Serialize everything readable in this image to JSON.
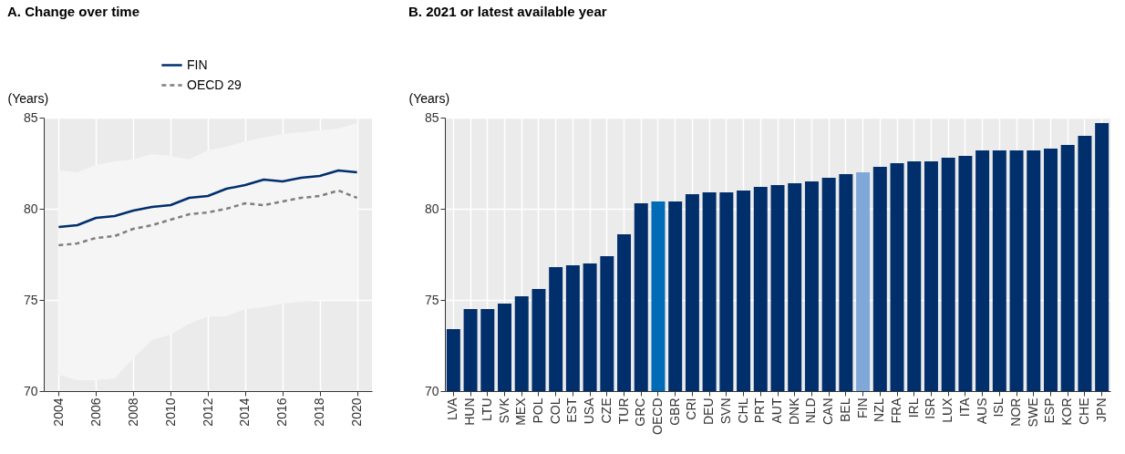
{
  "chart_data": [
    {
      "type": "line",
      "title": "A. Change over time",
      "ylabel": "(Years)",
      "x": [
        2004,
        2005,
        2006,
        2007,
        2008,
        2009,
        2010,
        2011,
        2012,
        2013,
        2014,
        2015,
        2016,
        2017,
        2018,
        2019,
        2020
      ],
      "series": [
        {
          "name": "FIN",
          "color": "#002f6c",
          "line_style": "solid",
          "values": [
            79.0,
            79.1,
            79.5,
            79.6,
            79.9,
            80.1,
            80.2,
            80.6,
            80.7,
            81.1,
            81.3,
            81.6,
            81.5,
            81.7,
            81.8,
            82.1,
            82.0
          ]
        },
        {
          "name": "OECD 29",
          "color": "#7f7f7f",
          "line_style": "dashed",
          "values": [
            78.0,
            78.1,
            78.4,
            78.5,
            78.9,
            79.1,
            79.4,
            79.7,
            79.8,
            80.0,
            80.3,
            80.2,
            80.4,
            80.6,
            80.7,
            81.0,
            80.6
          ],
          "lower": [
            70.9,
            70.6,
            70.6,
            70.7,
            71.8,
            72.8,
            73.1,
            73.7,
            74.1,
            74.1,
            74.5,
            74.6,
            74.8,
            74.9,
            75.0,
            75.0,
            75.0
          ],
          "upper": [
            82.1,
            82.0,
            82.4,
            82.6,
            82.7,
            83.0,
            82.9,
            82.7,
            83.2,
            83.4,
            83.7,
            83.9,
            84.1,
            84.2,
            84.3,
            84.4,
            84.7
          ]
        }
      ],
      "xlim": [
        2003.2,
        2020.8
      ],
      "xticks": [
        2004,
        2006,
        2008,
        2010,
        2012,
        2014,
        2016,
        2018,
        2020
      ],
      "ylim": [
        70,
        85
      ],
      "yticks": [
        70,
        75,
        80,
        85
      ],
      "grid": true,
      "legend": "top"
    },
    {
      "type": "bar",
      "title": "B. 2021 or latest available year",
      "ylabel": "(Years)",
      "categories": [
        "LVA",
        "HUN",
        "LTU",
        "SVK",
        "MEX",
        "POL",
        "COL",
        "EST",
        "USA",
        "CZE",
        "TUR",
        "GRC",
        "OECD",
        "GBR",
        "CRI",
        "DEU",
        "SVN",
        "CHL",
        "PRT",
        "AUT",
        "DNK",
        "NLD",
        "CAN",
        "BEL",
        "FIN",
        "NZL",
        "FRA",
        "IRL",
        "ISR",
        "LUX",
        "ITA",
        "AUS",
        "ISL",
        "NOR",
        "SWE",
        "ESP",
        "KOR",
        "CHE",
        "JPN"
      ],
      "values": [
        73.4,
        74.5,
        74.5,
        74.8,
        75.2,
        75.6,
        76.8,
        76.9,
        77.0,
        77.4,
        78.6,
        80.3,
        80.4,
        80.4,
        80.8,
        80.9,
        80.9,
        81.0,
        81.2,
        81.3,
        81.4,
        81.5,
        81.7,
        81.9,
        82.0,
        82.3,
        82.5,
        82.6,
        82.6,
        82.8,
        82.9,
        83.2,
        83.2,
        83.2,
        83.2,
        83.3,
        83.5,
        84.0,
        84.7
      ],
      "colors": [
        "#002f6c",
        "#002f6c",
        "#002f6c",
        "#002f6c",
        "#002f6c",
        "#002f6c",
        "#002f6c",
        "#002f6c",
        "#002f6c",
        "#002f6c",
        "#002f6c",
        "#002f6c",
        "#006bb6",
        "#002f6c",
        "#002f6c",
        "#002f6c",
        "#002f6c",
        "#002f6c",
        "#002f6c",
        "#002f6c",
        "#002f6c",
        "#002f6c",
        "#002f6c",
        "#002f6c",
        "#7fa8d9",
        "#002f6c",
        "#002f6c",
        "#002f6c",
        "#002f6c",
        "#002f6c",
        "#002f6c",
        "#002f6c",
        "#002f6c",
        "#002f6c",
        "#002f6c",
        "#002f6c",
        "#002f6c",
        "#002f6c",
        "#002f6c"
      ],
      "ylim": [
        70,
        85
      ],
      "yticks": [
        70,
        75,
        80,
        85
      ],
      "grid": true
    }
  ]
}
